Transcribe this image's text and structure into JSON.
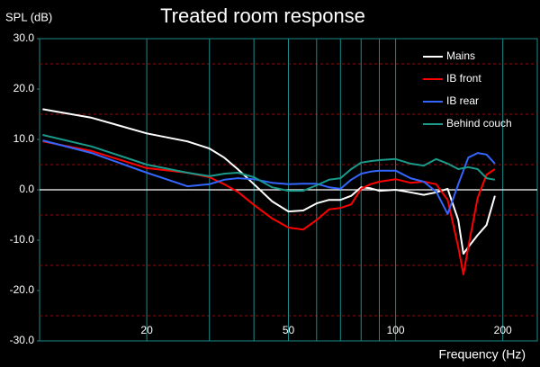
{
  "chart_data": {
    "type": "line",
    "title": "Treated room response",
    "ylabel": "SPL (dB)",
    "xlabel": "Frequency (Hz)",
    "xscale": "log",
    "xlim": [
      10,
      250
    ],
    "xticks": [
      20,
      50,
      100,
      200
    ],
    "xminor_ticks": [
      30,
      40,
      60,
      70,
      80,
      90
    ],
    "ylim": [
      -30,
      30
    ],
    "yticks": [
      {
        "value": -30,
        "label": "-30.0"
      },
      {
        "value": -20,
        "label": "-20.0"
      },
      {
        "value": -10,
        "label": "-10.0"
      },
      {
        "value": 0,
        "label": "0.0"
      },
      {
        "value": 10,
        "label": "10.0"
      },
      {
        "value": 20,
        "label": "20.0"
      },
      {
        "value": 30,
        "label": "30.0"
      }
    ],
    "yminor_ticks": [
      -25,
      -15,
      -5,
      5,
      15,
      25
    ],
    "zero_line": true,
    "legend": "upper right",
    "x": [
      10.2,
      14,
      20,
      26,
      30,
      33,
      36,
      40,
      45,
      50,
      55,
      60,
      65,
      70,
      75,
      80,
      85,
      90,
      100,
      110,
      120,
      130,
      140,
      150,
      155,
      160,
      170,
      180,
      190
    ],
    "series": [
      {
        "name": "Mains",
        "color": "#ffffff",
        "values": [
          16,
          14.3,
          11.2,
          9.6,
          8.2,
          6.4,
          4.1,
          1.1,
          -2.3,
          -4.3,
          -4.1,
          -2.7,
          -2,
          -2,
          -1.2,
          0.5,
          0.3,
          -0.2,
          0,
          -0.5,
          -1,
          -0.5,
          0.2,
          -6,
          -12.7,
          -11.4,
          -9,
          -7,
          -1.2
        ]
      },
      {
        "name": "IB front",
        "color": "#ff0000",
        "values": [
          9.6,
          7.7,
          4.3,
          3.4,
          2.5,
          1.1,
          -0.4,
          -3,
          -5.7,
          -7.5,
          -7.9,
          -6,
          -3.9,
          -3.6,
          -2.9,
          0.2,
          1.1,
          1.6,
          2.1,
          1.4,
          1.6,
          1.1,
          -2,
          -11.4,
          -16.8,
          -11.4,
          -1.6,
          3,
          4.1
        ]
      },
      {
        "name": "IB rear",
        "color": "#3366ff",
        "values": [
          9.8,
          7.3,
          3.4,
          0.7,
          1.1,
          2,
          2.3,
          2.1,
          1.4,
          1.1,
          1.2,
          1.2,
          0.5,
          0.2,
          2,
          3.2,
          3.6,
          3.8,
          3.8,
          2.3,
          1.6,
          -0.4,
          -4.8,
          1.1,
          3.8,
          6.4,
          7.3,
          7,
          5.2
        ]
      },
      {
        "name": "Behind couch",
        "color": "#1a9a8a",
        "values": [
          10.9,
          8.6,
          5,
          3.4,
          2.7,
          3.2,
          3.4,
          2.5,
          0.5,
          -0.2,
          -0.2,
          0.9,
          2,
          2.3,
          4.1,
          5.4,
          5.7,
          5.9,
          6.1,
          5.2,
          4.8,
          6.1,
          5.2,
          4.1,
          4.3,
          4.5,
          4.1,
          2.3,
          2
        ]
      }
    ]
  }
}
